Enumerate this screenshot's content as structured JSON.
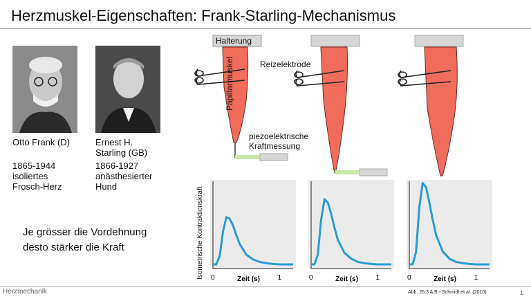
{
  "slide": {
    "title": "Herzmuskel-Eigenschaften: Frank-Starling-Mechanismus",
    "footer_left": "Herzmechanik",
    "citation": "Abb. 26.3 A,B -  Schmidt et al. (2010)",
    "page_number": "1"
  },
  "people": [
    {
      "name": "Otto Frank (D)",
      "details": "1865-1944\nisoliertes\nFrosch-Herz"
    },
    {
      "name": "Ernest H.\nStarling (GB)",
      "details": "1866-1927\nanästhesierter\nHund"
    }
  ],
  "statement": "Je grösser die Vordehnung\ndesto stärker die Kraft",
  "diagram": {
    "holder_label": "Halterung",
    "muscle_label": "Papillarmuskel",
    "electrode_label": "Reizelektrode",
    "sensor_label": "piezoelektrische\nKraftmessung",
    "colors": {
      "muscle": "#f26c5b",
      "holder": "#d6d6d6",
      "sensor": "#c9e8a4",
      "curve": "#2a9ad6"
    }
  },
  "chart_data": [
    {
      "type": "line",
      "xlabel": "Zeit (s)",
      "ylabel": "Isometrische Kontraktionskraft",
      "x_ticks": [
        "0",
        "1"
      ],
      "xlim": [
        0,
        1.2
      ],
      "series": [
        {
          "x": [
            0,
            0.05,
            0.1,
            0.15,
            0.2,
            0.25,
            0.3,
            0.35,
            0.4,
            0.5,
            0.6,
            0.7,
            0.8,
            0.9,
            1.0,
            1.2
          ],
          "y": [
            0,
            0,
            0.1,
            0.4,
            0.58,
            0.56,
            0.48,
            0.36,
            0.25,
            0.12,
            0.06,
            0.03,
            0.015,
            0.005,
            0,
            0
          ]
        }
      ]
    },
    {
      "type": "line",
      "xlabel": "Zeit (s)",
      "ylabel": "",
      "x_ticks": [
        "0",
        "1"
      ],
      "xlim": [
        0,
        1.2
      ],
      "series": [
        {
          "x": [
            0,
            0.05,
            0.1,
            0.15,
            0.2,
            0.25,
            0.3,
            0.35,
            0.4,
            0.5,
            0.6,
            0.7,
            0.8,
            0.9,
            1.0,
            1.2
          ],
          "y": [
            0,
            0,
            0.12,
            0.55,
            0.8,
            0.76,
            0.62,
            0.45,
            0.3,
            0.14,
            0.07,
            0.03,
            0.015,
            0.005,
            0,
            0
          ]
        }
      ]
    },
    {
      "type": "line",
      "xlabel": "Zeit (s)",
      "ylabel": "",
      "x_ticks": [
        "0",
        "1"
      ],
      "xlim": [
        0,
        1.2
      ],
      "series": [
        {
          "x": [
            0,
            0.05,
            0.1,
            0.15,
            0.2,
            0.25,
            0.3,
            0.35,
            0.4,
            0.5,
            0.6,
            0.7,
            0.8,
            0.9,
            1.0,
            1.2
          ],
          "y": [
            0,
            0,
            0.15,
            0.7,
            1.0,
            0.95,
            0.76,
            0.55,
            0.36,
            0.16,
            0.07,
            0.03,
            0.015,
            0.005,
            0,
            0
          ]
        }
      ]
    }
  ]
}
